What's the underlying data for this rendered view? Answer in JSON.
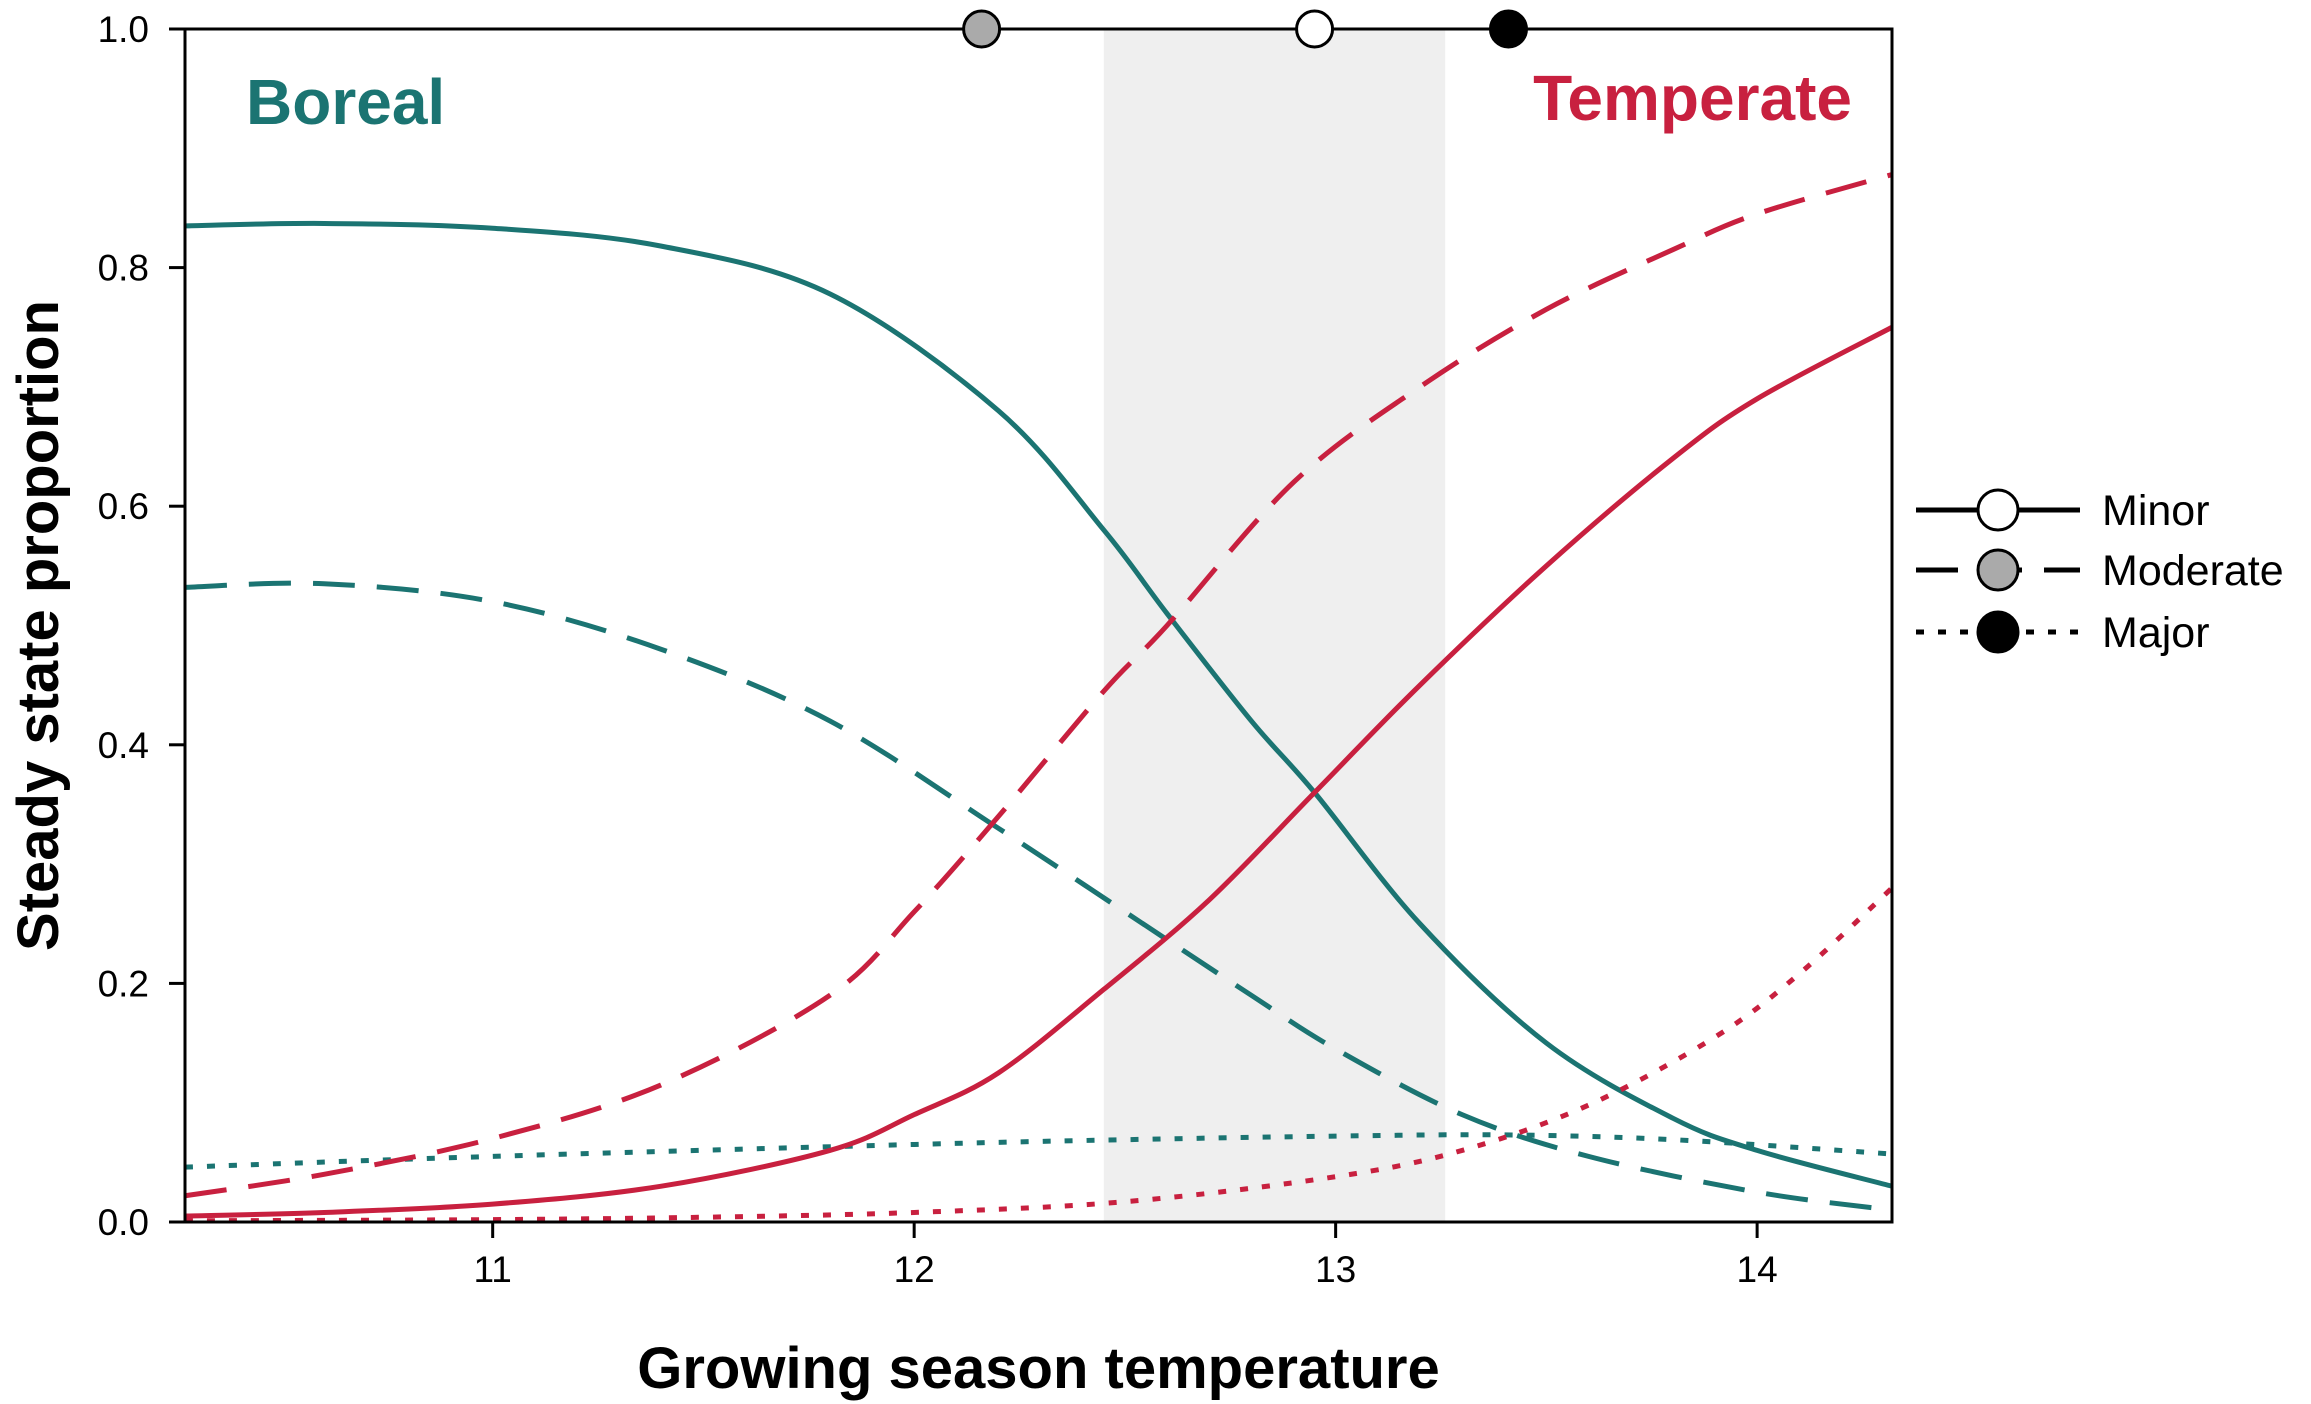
{
  "chart_data": {
    "type": "line",
    "xlabel": "Growing season temperature",
    "ylabel": "Steady state proportion",
    "xlim": [
      10.27,
      14.32
    ],
    "ylim": [
      0.0,
      1.0
    ],
    "x_ticks": [
      "11",
      "12",
      "13",
      "14"
    ],
    "y_ticks": [
      "0.0",
      "0.2",
      "0.4",
      "0.6",
      "0.8",
      "1.0"
    ],
    "grid": false,
    "region_labels": {
      "boreal": {
        "text": "Boreal",
        "color": "#1b7472"
      },
      "temperate": {
        "text": "Temperate",
        "color": "#c8203f"
      }
    },
    "shaded_band": {
      "x_from": 12.45,
      "x_to": 13.26,
      "color": "#efefef"
    },
    "threshold_markers": [
      {
        "disturbance": "Moderate",
        "x": 12.16,
        "y": 1.0,
        "fill": "#aaaaaa"
      },
      {
        "disturbance": "Minor",
        "x": 12.95,
        "y": 1.0,
        "fill": "#ffffff"
      },
      {
        "disturbance": "Major",
        "x": 13.41,
        "y": 1.0,
        "fill": "#000000"
      }
    ],
    "legend": {
      "position": "right",
      "items": [
        {
          "label": "Minor",
          "dash": "solid",
          "marker_fill": "#ffffff"
        },
        {
          "label": "Moderate",
          "dash": "dashed",
          "marker_fill": "#aaaaaa"
        },
        {
          "label": "Major",
          "dash": "dotted",
          "marker_fill": "#000000"
        }
      ]
    },
    "series": [
      {
        "forest": "Boreal",
        "disturbance": "Minor",
        "color": "#1b7472",
        "dash": "solid",
        "x": [
          10.27,
          10.6,
          11.0,
          11.4,
          11.8,
          12.2,
          12.45,
          12.6,
          12.8,
          12.95,
          13.2,
          13.5,
          13.8,
          14.0,
          14.32
        ],
        "y": [
          0.835,
          0.837,
          0.833,
          0.818,
          0.778,
          0.68,
          0.58,
          0.51,
          0.42,
          0.36,
          0.25,
          0.15,
          0.087,
          0.06,
          0.03
        ]
      },
      {
        "forest": "Boreal",
        "disturbance": "Moderate",
        "color": "#1b7472",
        "dash": "dashed",
        "x": [
          10.27,
          10.6,
          11.0,
          11.4,
          11.8,
          12.2,
          12.5,
          12.8,
          13.0,
          13.3,
          13.6,
          14.0,
          14.32
        ],
        "y": [
          0.532,
          0.535,
          0.52,
          0.48,
          0.42,
          0.33,
          0.26,
          0.19,
          0.145,
          0.09,
          0.055,
          0.025,
          0.01
        ]
      },
      {
        "forest": "Boreal",
        "disturbance": "Major",
        "color": "#1b7472",
        "dash": "dotted",
        "x": [
          10.27,
          11.0,
          12.0,
          12.5,
          13.0,
          13.4,
          13.8,
          14.32
        ],
        "y": [
          0.046,
          0.055,
          0.065,
          0.069,
          0.072,
          0.073,
          0.069,
          0.057
        ]
      },
      {
        "forest": "Temperate",
        "disturbance": "Minor",
        "color": "#c8203f",
        "dash": "solid",
        "x": [
          10.27,
          10.6,
          11.0,
          11.4,
          11.8,
          12.0,
          12.2,
          12.45,
          12.7,
          12.95,
          13.2,
          13.5,
          13.8,
          14.0,
          14.32
        ],
        "y": [
          0.005,
          0.008,
          0.015,
          0.03,
          0.06,
          0.09,
          0.125,
          0.195,
          0.27,
          0.36,
          0.45,
          0.55,
          0.64,
          0.69,
          0.75
        ]
      },
      {
        "forest": "Temperate",
        "disturbance": "Moderate",
        "color": "#c8203f",
        "dash": "dashed",
        "x": [
          10.27,
          10.6,
          11.0,
          11.4,
          11.8,
          12.0,
          12.2,
          12.45,
          12.6,
          12.9,
          13.2,
          13.5,
          13.8,
          14.0,
          14.32
        ],
        "y": [
          0.022,
          0.04,
          0.07,
          0.115,
          0.19,
          0.26,
          0.34,
          0.445,
          0.5,
          0.62,
          0.7,
          0.765,
          0.815,
          0.845,
          0.878
        ]
      },
      {
        "forest": "Temperate",
        "disturbance": "Major",
        "color": "#c8203f",
        "dash": "dotted",
        "x": [
          10.27,
          11.0,
          11.5,
          12.0,
          12.5,
          13.0,
          13.3,
          13.6,
          13.9,
          14.1,
          14.32
        ],
        "y": [
          0.001,
          0.002,
          0.004,
          0.008,
          0.017,
          0.038,
          0.06,
          0.098,
          0.155,
          0.208,
          0.28
        ]
      }
    ]
  }
}
